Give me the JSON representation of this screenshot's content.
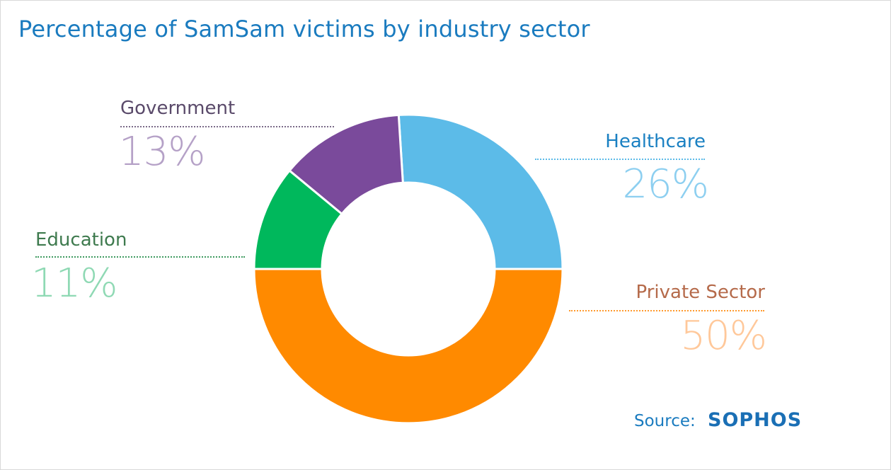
{
  "chart_data": {
    "type": "pie",
    "title": "Percentage of SamSam victims by industry sector",
    "categories": [
      "Healthcare",
      "Private Sector",
      "Education",
      "Government"
    ],
    "values": [
      26,
      50,
      11,
      13
    ],
    "value_labels": [
      "26%",
      "50%",
      "11%",
      "13%"
    ],
    "colors": [
      "#5cbbe8",
      "#ff8a00",
      "#00b85c",
      "#7a4a9b"
    ],
    "label_colors": [
      "#1a80c2",
      "#b56a4a",
      "#3e7a4e",
      "#5a4a6a"
    ],
    "pct_colors": [
      "#8dcff0",
      "#ffc89a",
      "#8fd9b4",
      "#b5a1c7"
    ],
    "donut": true,
    "legend": "none"
  },
  "source": {
    "label": "Source:",
    "logo_text": "SOPHOS"
  }
}
